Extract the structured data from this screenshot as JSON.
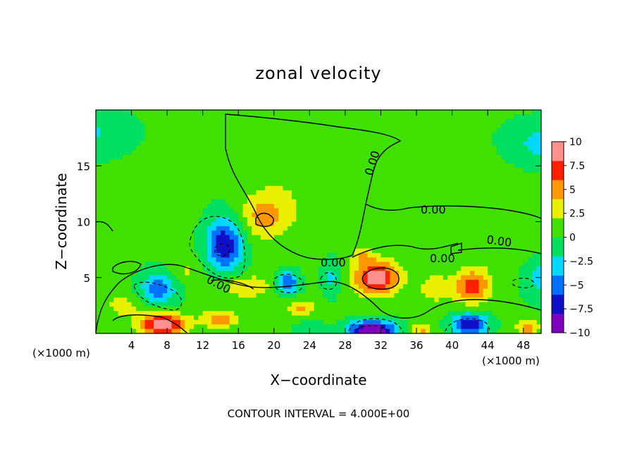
{
  "chart_data": {
    "type": "heatmap",
    "title": "zonal velocity",
    "xlabel": "X−coordinate",
    "ylabel": "Z−coordinate",
    "x_unit_left": "(×1000 m)",
    "x_unit_right": "(×1000 m)",
    "footer": "CONTOUR INTERVAL = 4.000E+00",
    "xlim": [
      0,
      50
    ],
    "ylim": [
      0,
      20
    ],
    "x_ticks": [
      4,
      8,
      12,
      16,
      20,
      24,
      28,
      32,
      36,
      40,
      44,
      48
    ],
    "x_tick_labels": [
      "4",
      "8",
      "12",
      "16",
      "20",
      "24",
      "28",
      "32",
      "36",
      "40",
      "44",
      "48"
    ],
    "y_ticks": [
      5,
      10,
      15
    ],
    "y_tick_labels": [
      "5",
      "10",
      "15"
    ],
    "colorbar": {
      "range": [
        -10,
        10
      ],
      "ticks": [
        10,
        7.5,
        5,
        2.5,
        0,
        -2.5,
        -5,
        -7.5,
        -10
      ],
      "tick_labels": [
        "10",
        "7.5",
        "5",
        "2.5",
        "0",
        "−2.5",
        "−5",
        "−7.5",
        "−10"
      ],
      "colors": [
        "#8000c0",
        "#1010c8",
        "#0070ff",
        "#00d8ff",
        "#00e060",
        "#40e000",
        "#e8f000",
        "#ff9800",
        "#ff2000",
        "#ff9090"
      ]
    },
    "contour_labels": [
      "0.00",
      "0.00",
      "0.00",
      "0.00",
      "0.00",
      "0.00"
    ],
    "blobs": [
      {
        "x": 0,
        "z": 18,
        "v": -2.5,
        "sx": 4,
        "sz": 2
      },
      {
        "x": 50,
        "z": 17,
        "v": -3,
        "sx": 4,
        "sz": 2
      },
      {
        "x": 50,
        "z": 5,
        "v": -3,
        "sx": 2,
        "sz": 2
      },
      {
        "x": 19,
        "z": 10.5,
        "v": 4.5,
        "sx": 3,
        "sz": 2
      },
      {
        "x": 22,
        "z": 14,
        "v": 1.2,
        "sx": 4,
        "sz": 3
      },
      {
        "x": 14.5,
        "z": 8,
        "v": -8,
        "sx": 2,
        "sz": 2.5
      },
      {
        "x": 7,
        "z": 4,
        "v": -5.5,
        "sx": 2,
        "sz": 1.5
      },
      {
        "x": 21.5,
        "z": 4.5,
        "v": -7,
        "sx": 1.2,
        "sz": 1
      },
      {
        "x": 26.5,
        "z": 5,
        "v": -3,
        "sx": 1,
        "sz": 1.5
      },
      {
        "x": 31.5,
        "z": 5,
        "v": 9,
        "sx": 2.5,
        "sz": 1.5
      },
      {
        "x": 30,
        "z": 7,
        "v": 3,
        "sx": 1.2,
        "sz": 0.8
      },
      {
        "x": 42.3,
        "z": 4.2,
        "v": 6.5,
        "sx": 2,
        "sz": 1.5
      },
      {
        "x": 7.5,
        "z": 0.8,
        "v": 10,
        "sx": 2.5,
        "sz": 1
      },
      {
        "x": 14,
        "z": 1.3,
        "v": 5,
        "sx": 2,
        "sz": 0.8
      },
      {
        "x": 31,
        "z": 0.3,
        "v": -12,
        "sx": 2.5,
        "sz": 0.8
      },
      {
        "x": 42,
        "z": 0.8,
        "v": -8,
        "sx": 2,
        "sz": 1
      },
      {
        "x": 36.5,
        "z": 0.3,
        "v": 4,
        "sx": 1.2,
        "sz": 0.6
      },
      {
        "x": 24,
        "z": 0.4,
        "v": -2.5,
        "sx": 1.5,
        "sz": 0.6
      },
      {
        "x": 48.5,
        "z": 0.5,
        "v": 5,
        "sx": 1.2,
        "sz": 0.6
      },
      {
        "x": 17,
        "z": 4.2,
        "v": 3.5,
        "sx": 3,
        "sz": 1
      },
      {
        "x": 23,
        "z": 2.3,
        "v": 4,
        "sx": 1.5,
        "sz": 0.7
      },
      {
        "x": 3,
        "z": 2.5,
        "v": 2.5,
        "sx": 2,
        "sz": 1
      },
      {
        "x": 10,
        "z": 5.5,
        "v": 2,
        "sx": 2,
        "sz": 1
      },
      {
        "x": 38,
        "z": 4,
        "v": 2.5,
        "sx": 2,
        "sz": 1.5
      },
      {
        "x": 45,
        "z": 8,
        "v": 1.5,
        "sx": 4,
        "sz": 2
      },
      {
        "x": 41,
        "z": 13,
        "v": 1,
        "sx": 5,
        "sz": 3
      }
    ]
  }
}
